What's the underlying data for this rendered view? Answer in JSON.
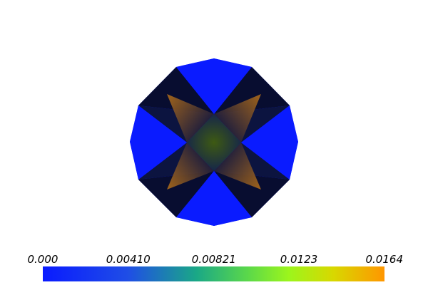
{
  "scene": {
    "title": "",
    "colormap_stops": [
      {
        "t": 0.0,
        "color": "#0a1bff"
      },
      {
        "t": 0.25,
        "color": "#1f4ee6"
      },
      {
        "t": 0.45,
        "color": "#1aa886"
      },
      {
        "t": 0.6,
        "color": "#5bd84a"
      },
      {
        "t": 0.72,
        "color": "#9cf51c"
      },
      {
        "t": 0.85,
        "color": "#d8d800"
      },
      {
        "t": 1.0,
        "color": "#ff9600"
      }
    ],
    "background_color": "#ffffff",
    "blue_face_color": "#0a1bff",
    "dark_face_color": "#070b2a",
    "inner_glow_color": "#b46f19",
    "center_color": "#3e5a12"
  },
  "colorbar": {
    "range": [
      0.0,
      0.0164
    ],
    "ticks": [
      {
        "value": 0.0,
        "label": "0.000"
      },
      {
        "value": 0.0041,
        "label": "0.00410"
      },
      {
        "value": 0.00821,
        "label": "0.00821"
      },
      {
        "value": 0.0123,
        "label": "0.0123"
      },
      {
        "value": 0.0164,
        "label": "0.0164"
      }
    ]
  }
}
